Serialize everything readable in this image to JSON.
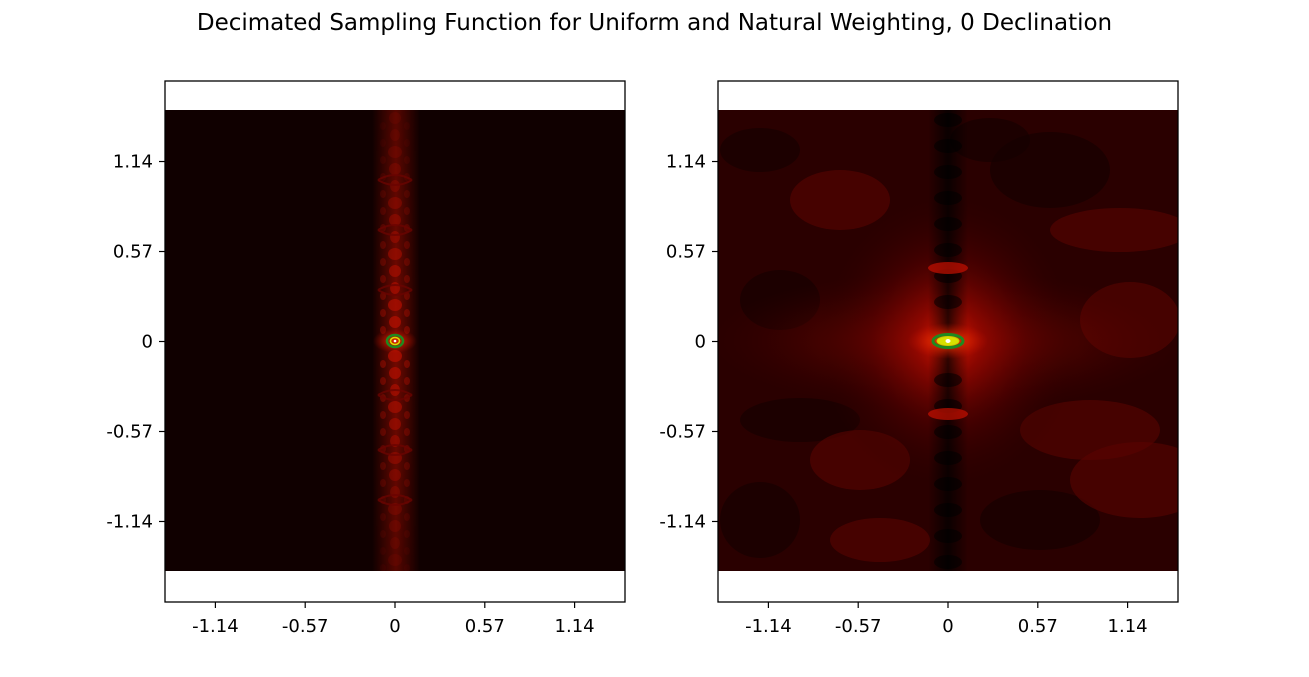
{
  "figure": {
    "title": "Decimated Sampling Function for Uniform and Natural Weighting, 0 Declination"
  },
  "colors": {
    "background_dark": "#100000",
    "red_bright": "#c81000",
    "contour_outer": "#1f8a1f",
    "contour_inner": "#d8e000",
    "center": "#ffffff"
  },
  "chart_data": [
    {
      "type": "heatmap",
      "title": "",
      "xlabel": "",
      "ylabel": "",
      "xlim": [
        -1.46,
        1.46
      ],
      "ylim": [
        -1.65,
        1.65
      ],
      "image_extent": [
        -1.46,
        1.46,
        -1.46,
        1.46
      ],
      "xticks": [
        -1.14,
        -0.57,
        0,
        0.57,
        1.14
      ],
      "yticks": [
        1.14,
        0.57,
        0,
        -0.57,
        -1.14
      ],
      "xtick_labels": [
        "-1.14",
        "-0.57",
        "0",
        "0.57",
        "1.14"
      ],
      "ytick_labels": [
        "1.14",
        "0.57",
        "0",
        "-0.57",
        "-1.14"
      ],
      "weighting": "uniform",
      "structure": "narrow vertical sidelobe stripe at x=0, faint background",
      "colormap": "black-red-yellow-white",
      "contours_at_origin": true
    },
    {
      "type": "heatmap",
      "title": "",
      "xlabel": "",
      "ylabel": "",
      "xlim": [
        -1.46,
        1.46
      ],
      "ylim": [
        -1.65,
        1.65
      ],
      "image_extent": [
        -1.46,
        1.46,
        -1.46,
        1.46
      ],
      "xticks": [
        -1.14,
        -0.57,
        0,
        0.57,
        1.14
      ],
      "yticks": [
        1.14,
        0.57,
        0,
        -0.57,
        -1.14
      ],
      "xtick_labels": [
        "-1.14",
        "-0.57",
        "0",
        "0.57",
        "1.14"
      ],
      "ytick_labels": [
        "1.14",
        "0.57",
        "0",
        "-0.57",
        "-1.14"
      ],
      "weighting": "natural",
      "structure": "broad central red glow with horizontal and vertical sidelobes",
      "colormap": "black-red-yellow-white",
      "contours_at_origin": true
    }
  ]
}
